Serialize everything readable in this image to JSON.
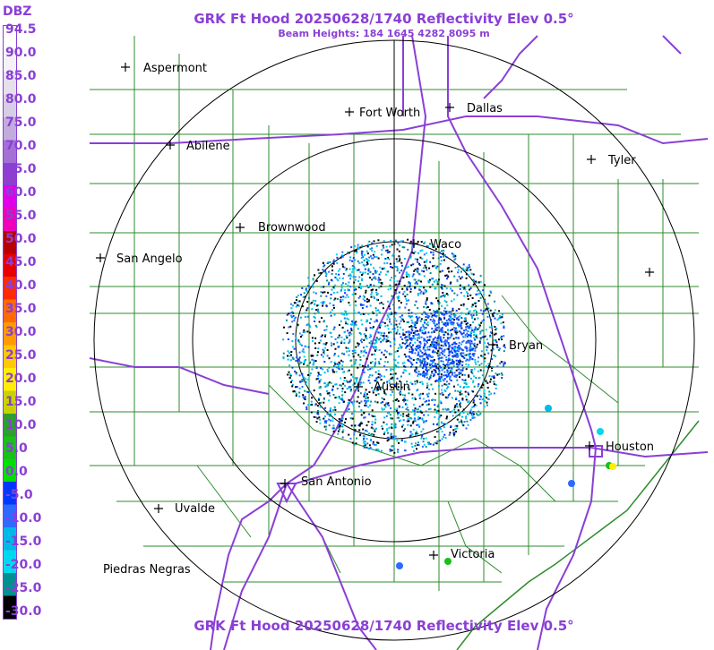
{
  "header": {
    "title": "GRK Ft Hood 20250628/1740 Reflectivity Elev 0.5°",
    "subtitle": "Beam Heights: 184 1645 4282 8095 m",
    "footer_title": "GRK Ft Hood 20250628/1740 Reflectivity Elev 0.5°"
  },
  "legend": {
    "unit": "DBZ",
    "ticks": [
      "94.5",
      "90.0",
      "85.0",
      "80.0",
      "75.0",
      "70.0",
      "65.0",
      "60.0",
      "55.0",
      "50.0",
      "45.0",
      "40.0",
      "35.0",
      "30.0",
      "25.0",
      "20.0",
      "15.0",
      "10.0",
      "5.0",
      "0.0",
      "-5.0",
      "-10.0",
      "-15.0",
      "-20.0",
      "-25.0",
      "-30.0"
    ],
    "colors": [
      "#ffffff",
      "#f4f2f7",
      "#e6e0ee",
      "#d7cde6",
      "#c2acdd",
      "#a570d6",
      "#8e3fd0",
      "#e000e6",
      "#f000b8",
      "#b80000",
      "#e80000",
      "#ff2a00",
      "#ff6a00",
      "#ff9900",
      "#ffc800",
      "#ffee00",
      "#c8d200",
      "#2e9f2e",
      "#18c018",
      "#00e000",
      "#0038ff",
      "#2d6aff",
      "#00b8e8",
      "#00d8f0",
      "#009090",
      "#000000"
    ]
  },
  "cities": [
    {
      "name": "Aspermont",
      "icon": "plus-marker"
    },
    {
      "name": "Fort Worth",
      "icon": "plus-marker"
    },
    {
      "name": "Dallas",
      "icon": "plus-marker"
    },
    {
      "name": "Abilene",
      "icon": "plus-marker"
    },
    {
      "name": "Tyler",
      "icon": "plus-marker"
    },
    {
      "name": "Brownwood",
      "icon": "plus-marker"
    },
    {
      "name": "Waco",
      "icon": "plus-marker"
    },
    {
      "name": "San Angelo",
      "icon": "plus-marker"
    },
    {
      "name": "Bryan",
      "icon": "plus-marker"
    },
    {
      "name": "Austin",
      "icon": "plus-marker"
    },
    {
      "name": "Houston",
      "icon": "plus-marker"
    },
    {
      "name": "San Antonio",
      "icon": "plus-marker"
    },
    {
      "name": "Uvalde",
      "icon": "plus-marker"
    },
    {
      "name": "Victoria",
      "icon": "plus-marker"
    },
    {
      "name": "Piedras Negras",
      "icon": "none"
    }
  ],
  "colors": {
    "title": "#8a3fd6",
    "county_lines": "#2e8b2e",
    "highways": "#8a3fd6",
    "range_rings": "#000000"
  }
}
